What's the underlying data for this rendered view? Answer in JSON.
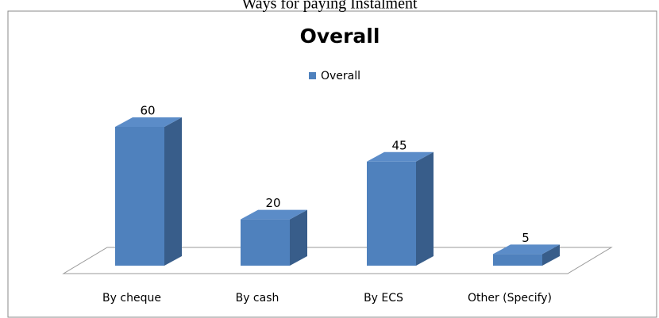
{
  "page_title": "Ways for paying Instalment",
  "chart_data": {
    "type": "bar3d",
    "title": "Overall",
    "categories": [
      "By cheque",
      "By cash",
      "By ECS",
      "Other (Specify)"
    ],
    "series": [
      {
        "name": "Overall",
        "color": "#4f81bd",
        "values": [
          60,
          20,
          45,
          5
        ]
      }
    ]
  }
}
